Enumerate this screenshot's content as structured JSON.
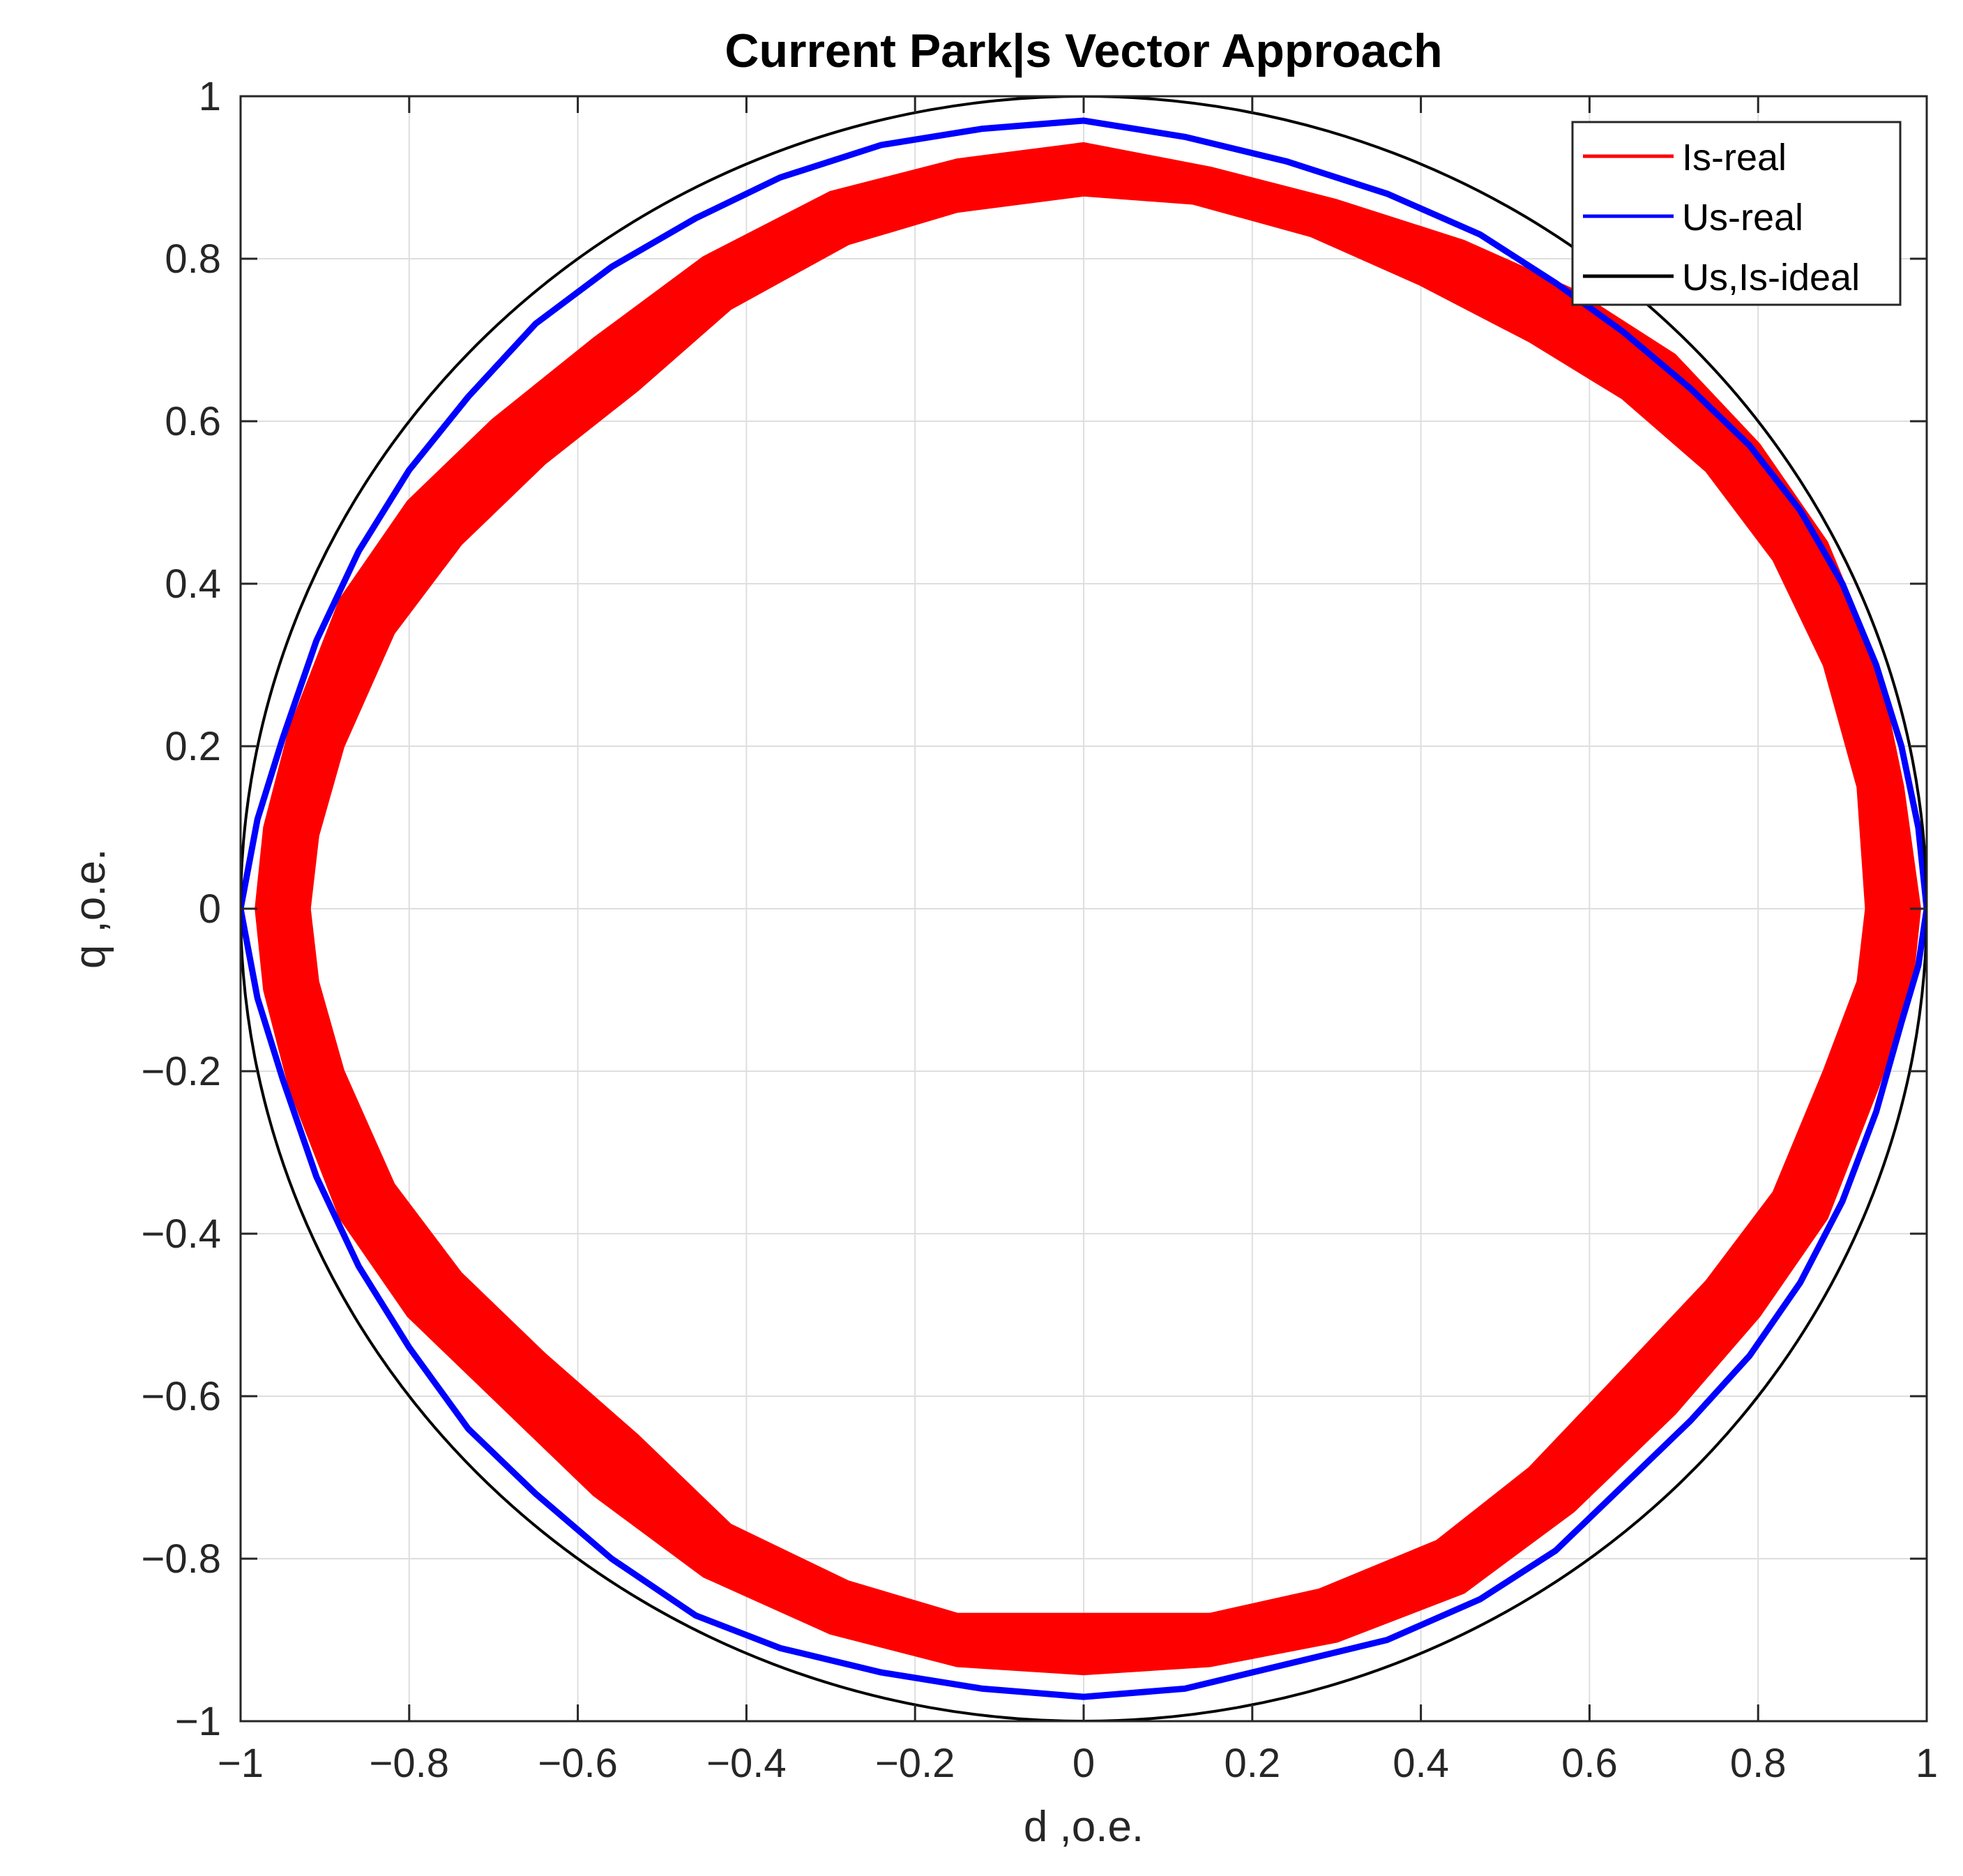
{
  "chart_data": {
    "type": "line",
    "title": "Current Park|s Vector Approach",
    "xlabel": "d ,o.e.",
    "ylabel": "q ,o.e.",
    "xlim": [
      -1,
      1
    ],
    "ylim": [
      -1,
      1
    ],
    "grid": true,
    "legend_position": "top-right",
    "xticks": [
      -1,
      -0.8,
      -0.6,
      -0.4,
      -0.2,
      0,
      0.2,
      0.4,
      0.6,
      0.8,
      1
    ],
    "yticks": [
      -1,
      -0.8,
      -0.6,
      -0.4,
      -0.2,
      0,
      0.2,
      0.4,
      0.6,
      0.8,
      1
    ],
    "xtick_labels": [
      "−1",
      "−0.8",
      "−0.6",
      "−0.4",
      "−0.2",
      "0",
      "0.2",
      "0.4",
      "0.6",
      "0.8",
      "1"
    ],
    "ytick_labels": [
      "−1",
      "−0.8",
      "−0.6",
      "−0.4",
      "−0.2",
      "0",
      "0.2",
      "0.4",
      "0.6",
      "0.8",
      "1"
    ],
    "series": [
      {
        "name": "Is-real",
        "color": "#ff0000",
        "band": true,
        "points_outer": [
          [
            0.99,
            0.0
          ],
          [
            0.97,
            0.15
          ],
          [
            0.94,
            0.3
          ],
          [
            0.88,
            0.45
          ],
          [
            0.8,
            0.57
          ],
          [
            0.7,
            0.68
          ],
          [
            0.58,
            0.76
          ],
          [
            0.45,
            0.82
          ],
          [
            0.3,
            0.87
          ],
          [
            0.15,
            0.91
          ],
          [
            0.0,
            0.94
          ],
          [
            -0.15,
            0.92
          ],
          [
            -0.3,
            0.88
          ],
          [
            -0.45,
            0.8
          ],
          [
            -0.58,
            0.7
          ],
          [
            -0.7,
            0.6
          ],
          [
            -0.8,
            0.5
          ],
          [
            -0.88,
            0.38
          ],
          [
            -0.94,
            0.22
          ],
          [
            -0.97,
            0.1
          ],
          [
            -0.98,
            0.0
          ],
          [
            -0.97,
            -0.1
          ],
          [
            -0.94,
            -0.22
          ],
          [
            -0.88,
            -0.38
          ],
          [
            -0.8,
            -0.5
          ],
          [
            -0.7,
            -0.6
          ],
          [
            -0.58,
            -0.72
          ],
          [
            -0.45,
            -0.82
          ],
          [
            -0.3,
            -0.89
          ],
          [
            -0.15,
            -0.93
          ],
          [
            0.0,
            -0.94
          ],
          [
            0.15,
            -0.93
          ],
          [
            0.3,
            -0.9
          ],
          [
            0.45,
            -0.84
          ],
          [
            0.58,
            -0.74
          ],
          [
            0.7,
            -0.62
          ],
          [
            0.8,
            -0.5
          ],
          [
            0.88,
            -0.38
          ],
          [
            0.94,
            -0.22
          ],
          [
            0.98,
            -0.1
          ],
          [
            0.99,
            0.0
          ]
        ],
        "points_inner": [
          [
            0.93,
            0.0
          ],
          [
            0.92,
            0.15
          ],
          [
            0.88,
            0.3
          ],
          [
            0.82,
            0.43
          ],
          [
            0.74,
            0.54
          ],
          [
            0.64,
            0.63
          ],
          [
            0.53,
            0.7
          ],
          [
            0.4,
            0.77
          ],
          [
            0.27,
            0.83
          ],
          [
            0.13,
            0.87
          ],
          [
            0.0,
            0.88
          ],
          [
            -0.15,
            0.86
          ],
          [
            -0.28,
            0.82
          ],
          [
            -0.42,
            0.74
          ],
          [
            -0.53,
            0.64
          ],
          [
            -0.64,
            0.55
          ],
          [
            -0.74,
            0.45
          ],
          [
            -0.82,
            0.34
          ],
          [
            -0.88,
            0.2
          ],
          [
            -0.91,
            0.09
          ],
          [
            -0.92,
            0.0
          ],
          [
            -0.91,
            -0.09
          ],
          [
            -0.88,
            -0.2
          ],
          [
            -0.82,
            -0.34
          ],
          [
            -0.74,
            -0.45
          ],
          [
            -0.64,
            -0.55
          ],
          [
            -0.53,
            -0.65
          ],
          [
            -0.42,
            -0.76
          ],
          [
            -0.28,
            -0.83
          ],
          [
            -0.15,
            -0.87
          ],
          [
            0.0,
            -0.87
          ],
          [
            0.15,
            -0.87
          ],
          [
            0.28,
            -0.84
          ],
          [
            0.42,
            -0.78
          ],
          [
            0.53,
            -0.69
          ],
          [
            0.64,
            -0.57
          ],
          [
            0.74,
            -0.46
          ],
          [
            0.82,
            -0.35
          ],
          [
            0.88,
            -0.2
          ],
          [
            0.92,
            -0.09
          ],
          [
            0.93,
            0.0
          ]
        ]
      },
      {
        "name": "Us-real",
        "color": "#0000ff",
        "points": [
          [
            1.0,
            0.0
          ],
          [
            0.99,
            0.1
          ],
          [
            0.97,
            0.2
          ],
          [
            0.94,
            0.3
          ],
          [
            0.9,
            0.4
          ],
          [
            0.85,
            0.49
          ],
          [
            0.79,
            0.57
          ],
          [
            0.72,
            0.64
          ],
          [
            0.64,
            0.71
          ],
          [
            0.56,
            0.77
          ],
          [
            0.47,
            0.83
          ],
          [
            0.36,
            0.88
          ],
          [
            0.24,
            0.92
          ],
          [
            0.12,
            0.95
          ],
          [
            0.0,
            0.97
          ],
          [
            -0.12,
            0.96
          ],
          [
            -0.24,
            0.94
          ],
          [
            -0.36,
            0.9
          ],
          [
            -0.46,
            0.85
          ],
          [
            -0.56,
            0.79
          ],
          [
            -0.65,
            0.72
          ],
          [
            -0.73,
            0.63
          ],
          [
            -0.8,
            0.54
          ],
          [
            -0.86,
            0.44
          ],
          [
            -0.91,
            0.33
          ],
          [
            -0.95,
            0.21
          ],
          [
            -0.98,
            0.11
          ],
          [
            -1.0,
            0.0
          ],
          [
            -0.98,
            -0.11
          ],
          [
            -0.95,
            -0.21
          ],
          [
            -0.91,
            -0.33
          ],
          [
            -0.86,
            -0.44
          ],
          [
            -0.8,
            -0.54
          ],
          [
            -0.73,
            -0.64
          ],
          [
            -0.65,
            -0.72
          ],
          [
            -0.56,
            -0.8
          ],
          [
            -0.46,
            -0.87
          ],
          [
            -0.36,
            -0.91
          ],
          [
            -0.24,
            -0.94
          ],
          [
            -0.12,
            -0.96
          ],
          [
            0.0,
            -0.97
          ],
          [
            0.12,
            -0.96
          ],
          [
            0.24,
            -0.93
          ],
          [
            0.36,
            -0.9
          ],
          [
            0.47,
            -0.85
          ],
          [
            0.56,
            -0.79
          ],
          [
            0.64,
            -0.71
          ],
          [
            0.72,
            -0.63
          ],
          [
            0.79,
            -0.55
          ],
          [
            0.85,
            -0.46
          ],
          [
            0.9,
            -0.36
          ],
          [
            0.94,
            -0.25
          ],
          [
            0.97,
            -0.14
          ],
          [
            0.99,
            -0.07
          ],
          [
            1.0,
            0.0
          ]
        ]
      },
      {
        "name": "Us,Is-ideal",
        "color": "#000000",
        "shape": "circle",
        "radius": 1.0
      }
    ]
  }
}
